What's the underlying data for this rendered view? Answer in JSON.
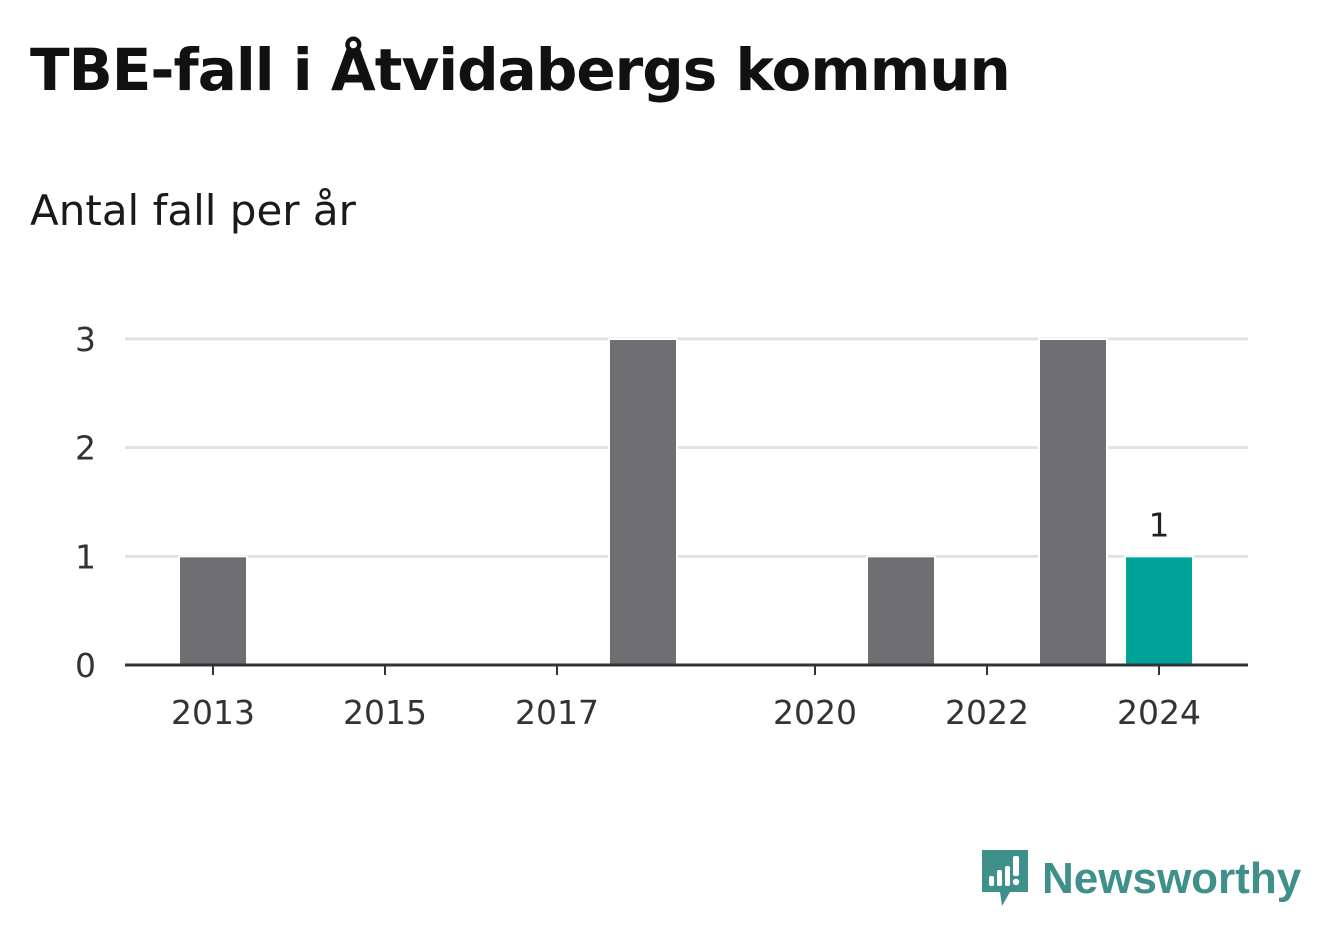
{
  "header": {
    "title": "TBE-fall i Åtvidabergs kommun",
    "subtitle": "Antal fall per år"
  },
  "brand": {
    "name": "Newsworthy",
    "icon": "newsworthy-logo-icon",
    "color": "#3f8f8a"
  },
  "colors": {
    "bar": "#6e6e73",
    "highlight": "#00a398",
    "grid": "#e2e2e2",
    "axis": "#333333"
  },
  "chart_data": {
    "type": "bar",
    "title": "TBE-fall i Åtvidabergs kommun",
    "subtitle": "Antal fall per år",
    "categories": [
      "2013",
      "2014",
      "2015",
      "2016",
      "2017",
      "2018",
      "2019",
      "2020",
      "2021",
      "2022",
      "2023",
      "2024"
    ],
    "values": [
      1,
      0,
      0,
      0,
      0,
      3,
      0,
      0,
      1,
      0,
      3,
      1
    ],
    "highlight": "2024",
    "highlight_label": "1",
    "x_tick_labels": [
      "2013",
      "2015",
      "2017",
      "2020",
      "2022",
      "2024"
    ],
    "y_ticks": [
      0,
      1,
      2,
      3
    ],
    "ylim": [
      0,
      3
    ],
    "grid": true,
    "legend": "none"
  }
}
